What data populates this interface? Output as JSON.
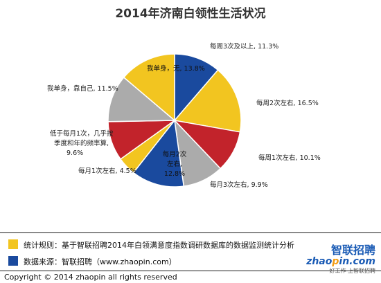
{
  "chart_data": {
    "type": "pie",
    "title": "2014年济南白领性生活状况",
    "slices": [
      {
        "label": "每周3次及以上",
        "value": 11.3,
        "display": "每周3次及以上, 11.3%",
        "color": "#1a4a9e"
      },
      {
        "label": "每周2次左右",
        "value": 16.5,
        "display": "每周2次左右, 16.5%",
        "color": "#f2c520"
      },
      {
        "label": "每周1次左右",
        "value": 10.1,
        "display": "每周1次左右, 10.1%",
        "color": "#c2232b"
      },
      {
        "label": "每月3次左右",
        "value": 9.9,
        "display": "每月3次左右, 9.9%",
        "color": "#ababab"
      },
      {
        "label": "每月2次左右",
        "value": 12.8,
        "display": "每月2次左右, 12.8%",
        "color": "#1a4a9e"
      },
      {
        "label": "每月1次左右",
        "value": 4.5,
        "display": "每月1次左右, 4.5%",
        "color": "#f2c520"
      },
      {
        "label": "低于每月1次，几乎按季度和年的频率算",
        "value": 9.6,
        "display": "低于每月1次，几乎按季度和年的频率算, 9.6%",
        "color": "#c2232b"
      },
      {
        "label": "我单身，靠自己",
        "value": 11.5,
        "display": "我单身，靠自己, 11.5%",
        "color": "#ababab"
      },
      {
        "label": "我单身，无",
        "value": 13.8,
        "display": "我单身，无, 13.8%",
        "color": "#f2c520"
      }
    ]
  },
  "footer": {
    "rule_text": "统计规则：基于智联招聘2014年白领满意度指数调研数据库的数据监测统计分析",
    "rule_color": "#f2c520",
    "source_text": "数据来源：智联招聘（www.zhaopin.com）",
    "source_color": "#1a4a9e",
    "copyright": "Copyright   ©  2014 zhaopin all rights reserved"
  },
  "logo": {
    "cn": "智联招聘",
    "en_prefix": "zhao",
    "en_dot": "p",
    "en_suffix": "in.com",
    "slogan": "好工作 上智联招聘"
  }
}
